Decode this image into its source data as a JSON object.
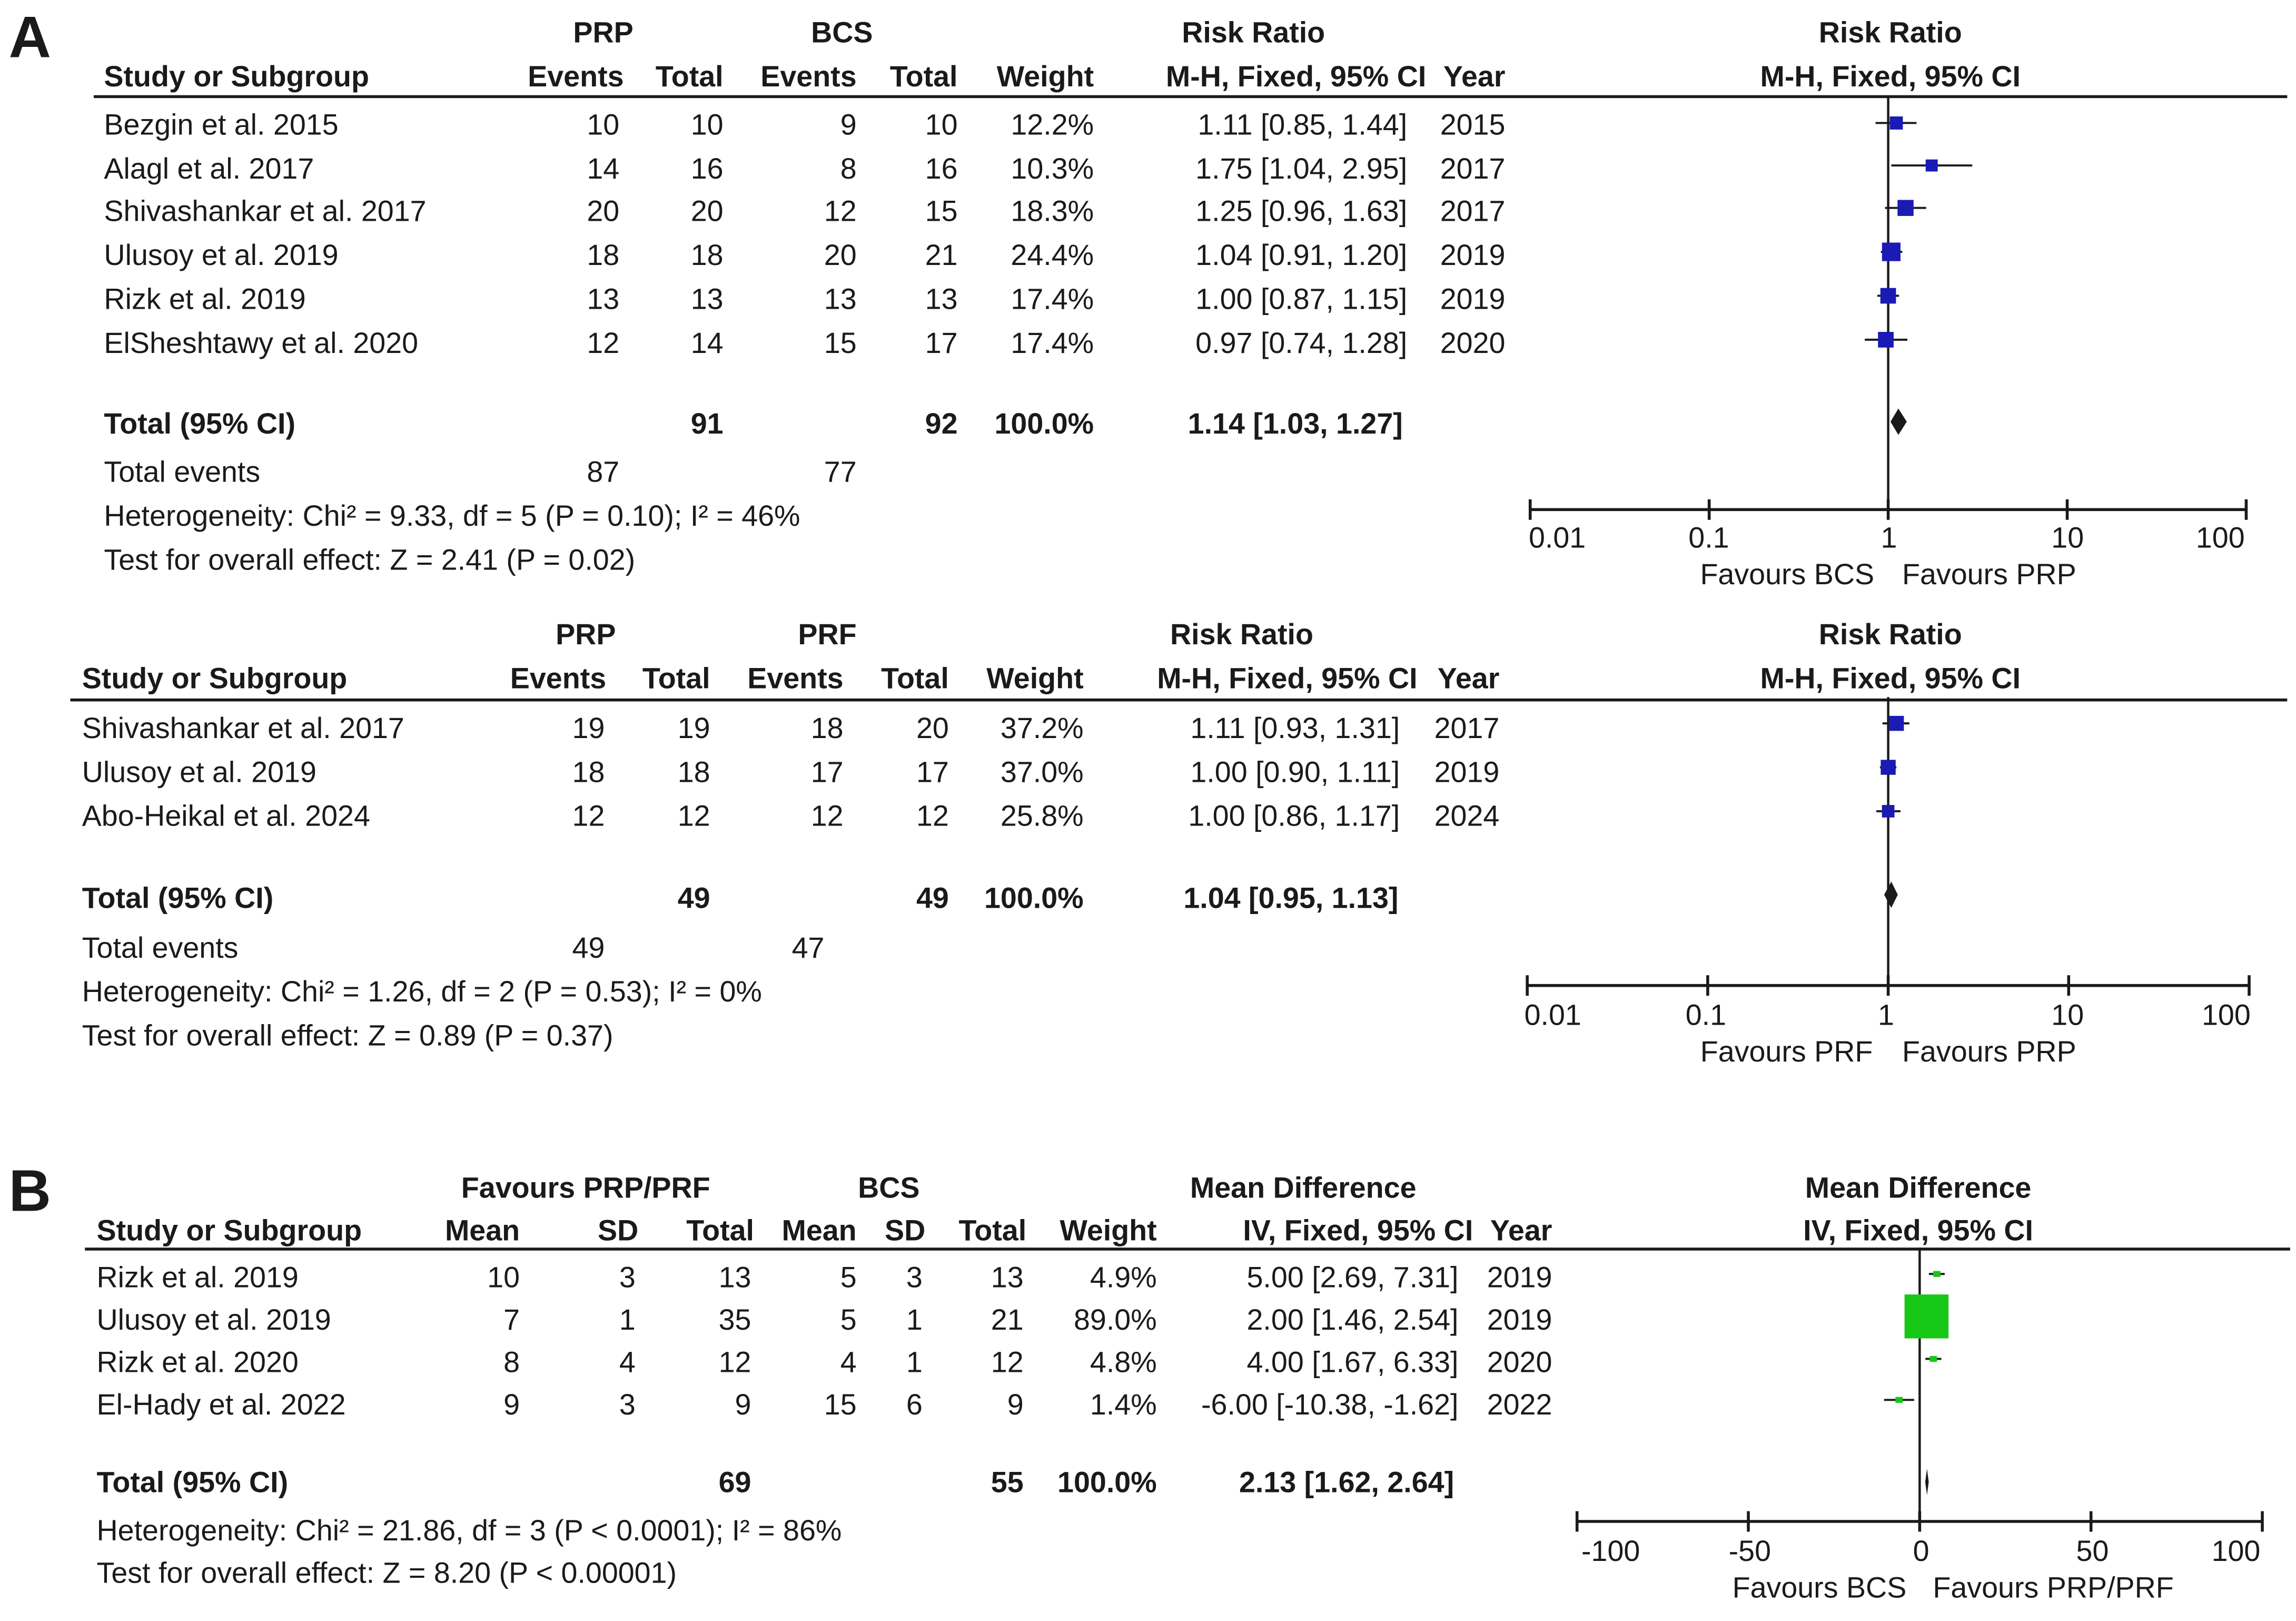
{
  "panels": [
    {
      "label": "A",
      "group1": "PRP",
      "group2": "BCS",
      "headers": {
        "study": "Study or Subgroup",
        "events1": "Events",
        "total1": "Total",
        "events2": "Events",
        "total2": "Total",
        "weight": "Weight",
        "effect_top": "Risk Ratio",
        "effect_method": "M-H, Fixed, 95% CI",
        "year": "Year",
        "plot_top": "Risk Ratio",
        "plot_method": "M-H, Fixed, 95% CI"
      },
      "rows": [
        {
          "study": "Bezgin et al. 2015",
          "e1": "10",
          "t1": "10",
          "e2": "9",
          "t2": "10",
          "weight": "12.2%",
          "ci": "1.11 [0.85, 1.44]",
          "year": "2015"
        },
        {
          "study": "Alagl et al. 2017",
          "e1": "14",
          "t1": "16",
          "e2": "8",
          "t2": "16",
          "weight": "10.3%",
          "ci": "1.75 [1.04, 2.95]",
          "year": "2017"
        },
        {
          "study": "Shivashankar et al. 2017",
          "e1": "20",
          "t1": "20",
          "e2": "12",
          "t2": "15",
          "weight": "18.3%",
          "ci": "1.25 [0.96, 1.63]",
          "year": "2017"
        },
        {
          "study": "Ulusoy et al. 2019",
          "e1": "18",
          "t1": "18",
          "e2": "20",
          "t2": "21",
          "weight": "24.4%",
          "ci": "1.04 [0.91, 1.20]",
          "year": "2019"
        },
        {
          "study": "Rizk et al. 2019",
          "e1": "13",
          "t1": "13",
          "e2": "13",
          "t2": "13",
          "weight": "17.4%",
          "ci": "1.00 [0.87, 1.15]",
          "year": "2019"
        },
        {
          "study": "ElSheshtawy et al. 2020",
          "e1": "12",
          "t1": "14",
          "e2": "15",
          "t2": "17",
          "weight": "17.4%",
          "ci": "0.97 [0.74, 1.28]",
          "year": "2020"
        }
      ],
      "total": {
        "label": "Total (95% CI)",
        "t1": "91",
        "t2": "92",
        "weight": "100.0%",
        "ci": "1.14 [1.03, 1.27]"
      },
      "total_events": {
        "label": "Total events",
        "e1": "87",
        "e2": "77"
      },
      "heterogeneity": "Heterogeneity: Chi² = 9.33, df = 5 (P = 0.10); I² = 46%",
      "overall": "Test for overall effect: Z = 2.41 (P = 0.02)",
      "axis_ticks": [
        "0.01",
        "0.1",
        "1",
        "10",
        "100"
      ],
      "favours_left": "Favours BCS",
      "favours_right": "Favours PRP"
    },
    {
      "label": "",
      "group1": "PRP",
      "group2": "PRF",
      "headers": {
        "study": "Study or Subgroup",
        "events1": "Events",
        "total1": "Total",
        "events2": "Events",
        "total2": "Total",
        "weight": "Weight",
        "effect_top": "Risk Ratio",
        "effect_method": "M-H, Fixed, 95% CI",
        "year": "Year",
        "plot_top": "Risk Ratio",
        "plot_method": "M-H, Fixed, 95% CI"
      },
      "rows": [
        {
          "study": "Shivashankar et al. 2017",
          "e1": "19",
          "t1": "19",
          "e2": "18",
          "t2": "20",
          "weight": "37.2%",
          "ci": "1.11 [0.93, 1.31]",
          "year": "2017"
        },
        {
          "study": "Ulusoy et al. 2019",
          "e1": "18",
          "t1": "18",
          "e2": "17",
          "t2": "17",
          "weight": "37.0%",
          "ci": "1.00 [0.90, 1.11]",
          "year": "2019"
        },
        {
          "study": "Abo-Heikal et al. 2024",
          "e1": "12",
          "t1": "12",
          "e2": "12",
          "t2": "12",
          "weight": "25.8%",
          "ci": "1.00 [0.86, 1.17]",
          "year": "2024"
        }
      ],
      "total": {
        "label": "Total (95% CI)",
        "t1": "49",
        "t2": "49",
        "weight": "100.0%",
        "ci": "1.04 [0.95, 1.13]"
      },
      "total_events": {
        "label": "Total events",
        "e1": "49",
        "e2": "47"
      },
      "heterogeneity": "Heterogeneity: Chi² = 1.26, df = 2 (P = 0.53); I² = 0%",
      "overall": "Test for overall effect: Z = 0.89 (P = 0.37)",
      "axis_ticks": [
        "0.01",
        "0.1",
        "1",
        "10",
        "100"
      ],
      "favours_left": "Favours PRF",
      "favours_right": "Favours PRP"
    },
    {
      "label": "B",
      "group1": "Favours PRP/PRF",
      "group2": "BCS",
      "headers": {
        "study": "Study or Subgroup",
        "mean1": "Mean",
        "sd1": "SD",
        "total1": "Total",
        "mean2": "Mean",
        "sd2": "SD",
        "total2": "Total",
        "weight": "Weight",
        "effect_top": "Mean Difference",
        "effect_method": "IV, Fixed, 95% CI",
        "year": "Year",
        "plot_top": "Mean Difference",
        "plot_method": "IV, Fixed, 95% CI"
      },
      "rows": [
        {
          "study": "Rizk et al. 2019",
          "m1": "10",
          "s1": "3",
          "t1": "13",
          "m2": "5",
          "s2": "3",
          "t2": "13",
          "weight": "4.9%",
          "ci": "5.00 [2.69, 7.31]",
          "year": "2019"
        },
        {
          "study": "Ulusoy et al. 2019",
          "m1": "7",
          "s1": "1",
          "t1": "35",
          "m2": "5",
          "s2": "1",
          "t2": "21",
          "weight": "89.0%",
          "ci": "2.00 [1.46, 2.54]",
          "year": "2019"
        },
        {
          "study": "Rizk et al. 2020",
          "m1": "8",
          "s1": "4",
          "t1": "12",
          "m2": "4",
          "s2": "1",
          "t2": "12",
          "weight": "4.8%",
          "ci": "4.00 [1.67, 6.33]",
          "year": "2020"
        },
        {
          "study": "El-Hady et al. 2022",
          "m1": "9",
          "s1": "3",
          "t1": "9",
          "m2": "15",
          "s2": "6",
          "t2": "9",
          "weight": "1.4%",
          "ci": "-6.00 [-10.38, -1.62]",
          "year": "2022"
        }
      ],
      "total": {
        "label": "Total (95% CI)",
        "t1": "69",
        "t2": "55",
        "weight": "100.0%",
        "ci": "2.13 [1.62, 2.64]"
      },
      "heterogeneity": "Heterogeneity: Chi² = 21.86, df = 3 (P < 0.0001); I² = 86%",
      "overall": "Test for overall effect: Z = 8.20 (P < 0.00001)",
      "axis_ticks": [
        "-100",
        "-50",
        "0",
        "50",
        "100"
      ],
      "favours_left": "Favours BCS",
      "favours_right": "Favours PRP/PRF"
    }
  ],
  "colors": {
    "rr_box": "#1a1ab4",
    "md_box": "#16c716",
    "line": "#1a1a1a"
  },
  "chart_data": [
    {
      "type": "scatter",
      "title": "Risk Ratio, M-H, Fixed, 95% CI (PRP vs BCS)",
      "scale": "log",
      "xlim": [
        0.01,
        100
      ],
      "studies": [
        "Bezgin et al. 2015",
        "Alagl et al. 2017",
        "Shivashankar et al. 2017",
        "Ulusoy et al. 2019",
        "Rizk et al. 2019",
        "ElSheshtawy et al. 2020"
      ],
      "estimates": [
        1.11,
        1.75,
        1.25,
        1.04,
        1.0,
        0.97
      ],
      "lower": [
        0.85,
        1.04,
        0.96,
        0.91,
        0.87,
        0.74
      ],
      "upper": [
        1.44,
        2.95,
        1.63,
        1.2,
        1.15,
        1.28
      ],
      "weights": [
        12.2,
        10.3,
        18.3,
        24.4,
        17.4,
        17.4
      ],
      "pooled": {
        "estimate": 1.14,
        "lower": 1.03,
        "upper": 1.27
      }
    },
    {
      "type": "scatter",
      "title": "Risk Ratio, M-H, Fixed, 95% CI (PRP vs PRF)",
      "scale": "log",
      "xlim": [
        0.01,
        100
      ],
      "studies": [
        "Shivashankar et al. 2017",
        "Ulusoy et al. 2019",
        "Abo-Heikal et al. 2024"
      ],
      "estimates": [
        1.11,
        1.0,
        1.0
      ],
      "lower": [
        0.93,
        0.9,
        0.86
      ],
      "upper": [
        1.31,
        1.11,
        1.17
      ],
      "weights": [
        37.2,
        37.0,
        25.8
      ],
      "pooled": {
        "estimate": 1.04,
        "lower": 0.95,
        "upper": 1.13
      }
    },
    {
      "type": "scatter",
      "title": "Mean Difference, IV, Fixed, 95% CI",
      "scale": "linear",
      "xlim": [
        -100,
        100
      ],
      "studies": [
        "Rizk et al. 2019",
        "Ulusoy et al. 2019",
        "Rizk et al. 2020",
        "El-Hady et al. 2022"
      ],
      "estimates": [
        5.0,
        2.0,
        4.0,
        -6.0
      ],
      "lower": [
        2.69,
        1.46,
        1.67,
        -10.38
      ],
      "upper": [
        7.31,
        2.54,
        6.33,
        -1.62
      ],
      "weights": [
        4.9,
        89.0,
        4.8,
        1.4
      ],
      "pooled": {
        "estimate": 2.13,
        "lower": 1.62,
        "upper": 2.64
      }
    }
  ]
}
